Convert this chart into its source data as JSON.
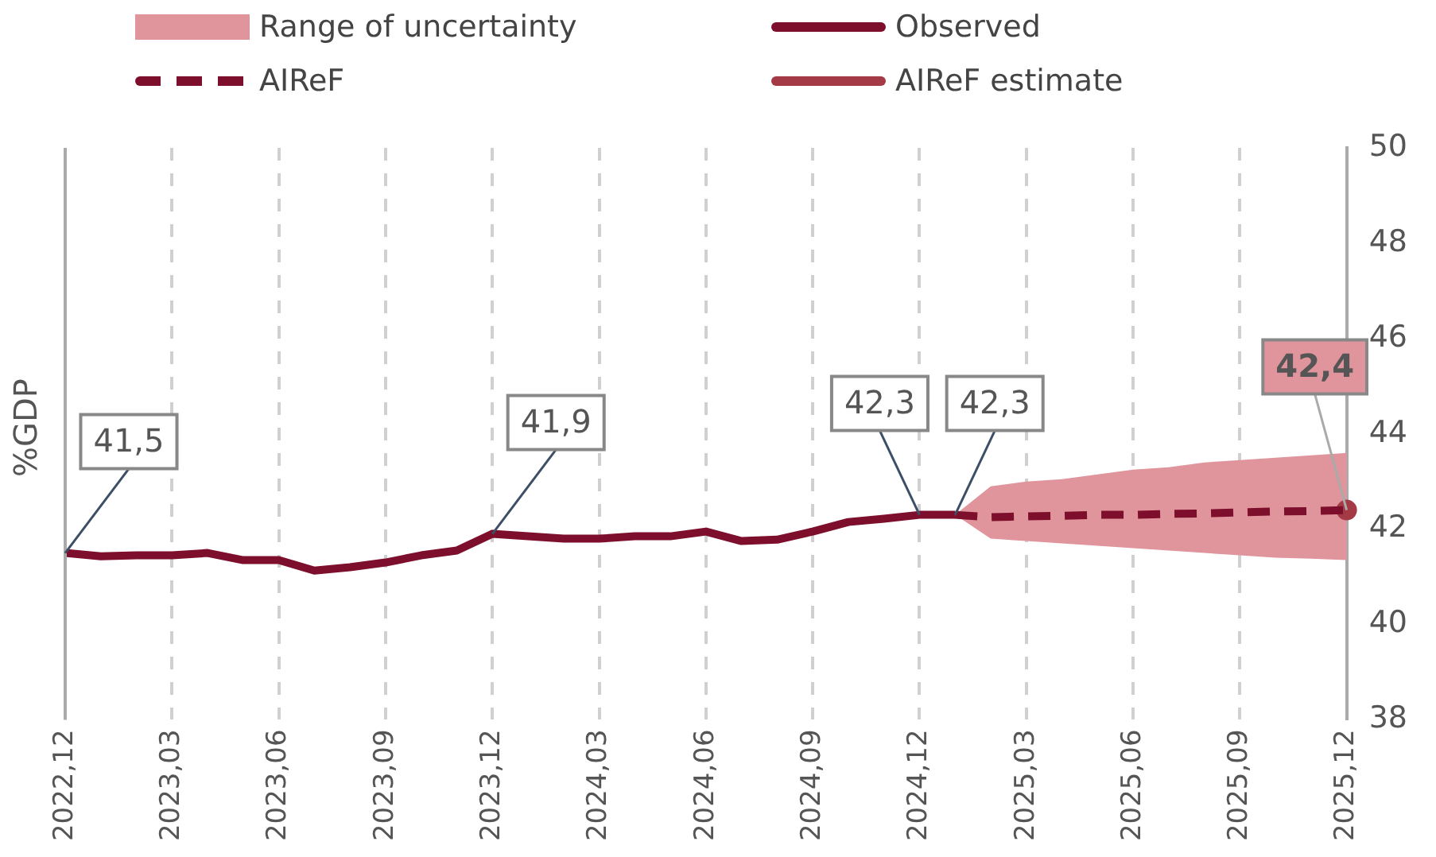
{
  "chart_data": {
    "type": "line",
    "ylabel": "%GDP",
    "categories": [
      "2022,12",
      null,
      null,
      "2023,03",
      null,
      null,
      "2023,06",
      null,
      null,
      "2023,09",
      null,
      null,
      "2023,12",
      null,
      null,
      "2024,03",
      null,
      null,
      "2024,06",
      null,
      null,
      "2024,09",
      null,
      null,
      "2024,12",
      null,
      null,
      "2025,03",
      null,
      null,
      "2025,06",
      null,
      null,
      "2025,09",
      null,
      null,
      "2025,12"
    ],
    "ylim": [
      38,
      50
    ],
    "yticks": [
      38,
      40,
      42,
      44,
      46,
      48,
      50
    ],
    "grid": "x",
    "legend": "top",
    "marker": "none",
    "annotations": [
      "Range of uncertainty"
    ],
    "series": [
      {
        "name": "Observed",
        "color": "#7d0f2d",
        "line_style": "solid",
        "values": [
          41.5,
          41.43,
          41.45,
          41.45,
          41.5,
          41.35,
          41.35,
          41.13,
          41.2,
          41.3,
          41.45,
          41.55,
          41.9,
          41.85,
          41.8,
          41.8,
          41.85,
          41.85,
          41.95,
          41.75,
          41.78,
          41.95,
          42.15,
          42.22,
          42.3,
          42.3,
          null,
          null,
          null,
          null,
          null,
          null,
          null,
          null,
          null,
          null,
          null
        ],
        "value_labels": [
          "41,5",
          null,
          null,
          null,
          null,
          null,
          null,
          null,
          null,
          null,
          null,
          null,
          "41,9",
          null,
          null,
          null,
          null,
          null,
          null,
          null,
          null,
          null,
          null,
          null,
          "42,3",
          "42,3",
          null,
          null,
          null,
          null,
          null,
          null,
          null,
          null,
          null,
          null,
          null
        ]
      },
      {
        "name": "AIReF",
        "color": "#7d0f2d",
        "line_style": "dashed",
        "values": [
          null,
          null,
          null,
          null,
          null,
          null,
          null,
          null,
          null,
          null,
          null,
          null,
          null,
          null,
          null,
          null,
          null,
          null,
          null,
          null,
          null,
          null,
          null,
          null,
          null,
          42.3,
          42.25,
          42.27,
          42.28,
          42.3,
          42.3,
          42.32,
          42.33,
          42.35,
          42.37,
          42.38,
          42.4
        ],
        "lower": [
          null,
          null,
          null,
          null,
          null,
          null,
          null,
          null,
          null,
          null,
          null,
          null,
          null,
          null,
          null,
          null,
          null,
          null,
          null,
          null,
          null,
          null,
          null,
          null,
          null,
          42.3,
          41.8,
          41.75,
          41.7,
          41.65,
          41.6,
          41.55,
          41.5,
          41.45,
          41.4,
          41.38,
          41.35
        ],
        "upper": [
          null,
          null,
          null,
          null,
          null,
          null,
          null,
          null,
          null,
          null,
          null,
          null,
          null,
          null,
          null,
          null,
          null,
          null,
          null,
          null,
          null,
          null,
          null,
          null,
          null,
          42.3,
          42.9,
          43.0,
          43.05,
          43.15,
          43.25,
          43.3,
          43.4,
          43.45,
          43.5,
          43.55,
          43.6
        ]
      },
      {
        "name": "AIReF estimate",
        "color": "#a33a45",
        "line_style": "solid",
        "marker": "circle",
        "values": [
          null,
          null,
          null,
          null,
          null,
          null,
          null,
          null,
          null,
          null,
          null,
          null,
          null,
          null,
          null,
          null,
          null,
          null,
          null,
          null,
          null,
          null,
          null,
          null,
          null,
          null,
          null,
          null,
          null,
          null,
          null,
          null,
          null,
          null,
          null,
          null,
          42.4
        ],
        "value_labels": [
          null,
          null,
          null,
          null,
          null,
          null,
          null,
          null,
          null,
          null,
          null,
          null,
          null,
          null,
          null,
          null,
          null,
          null,
          null,
          null,
          null,
          null,
          null,
          null,
          null,
          null,
          null,
          null,
          null,
          null,
          null,
          null,
          null,
          null,
          null,
          null,
          "42,4"
        ]
      }
    ]
  }
}
